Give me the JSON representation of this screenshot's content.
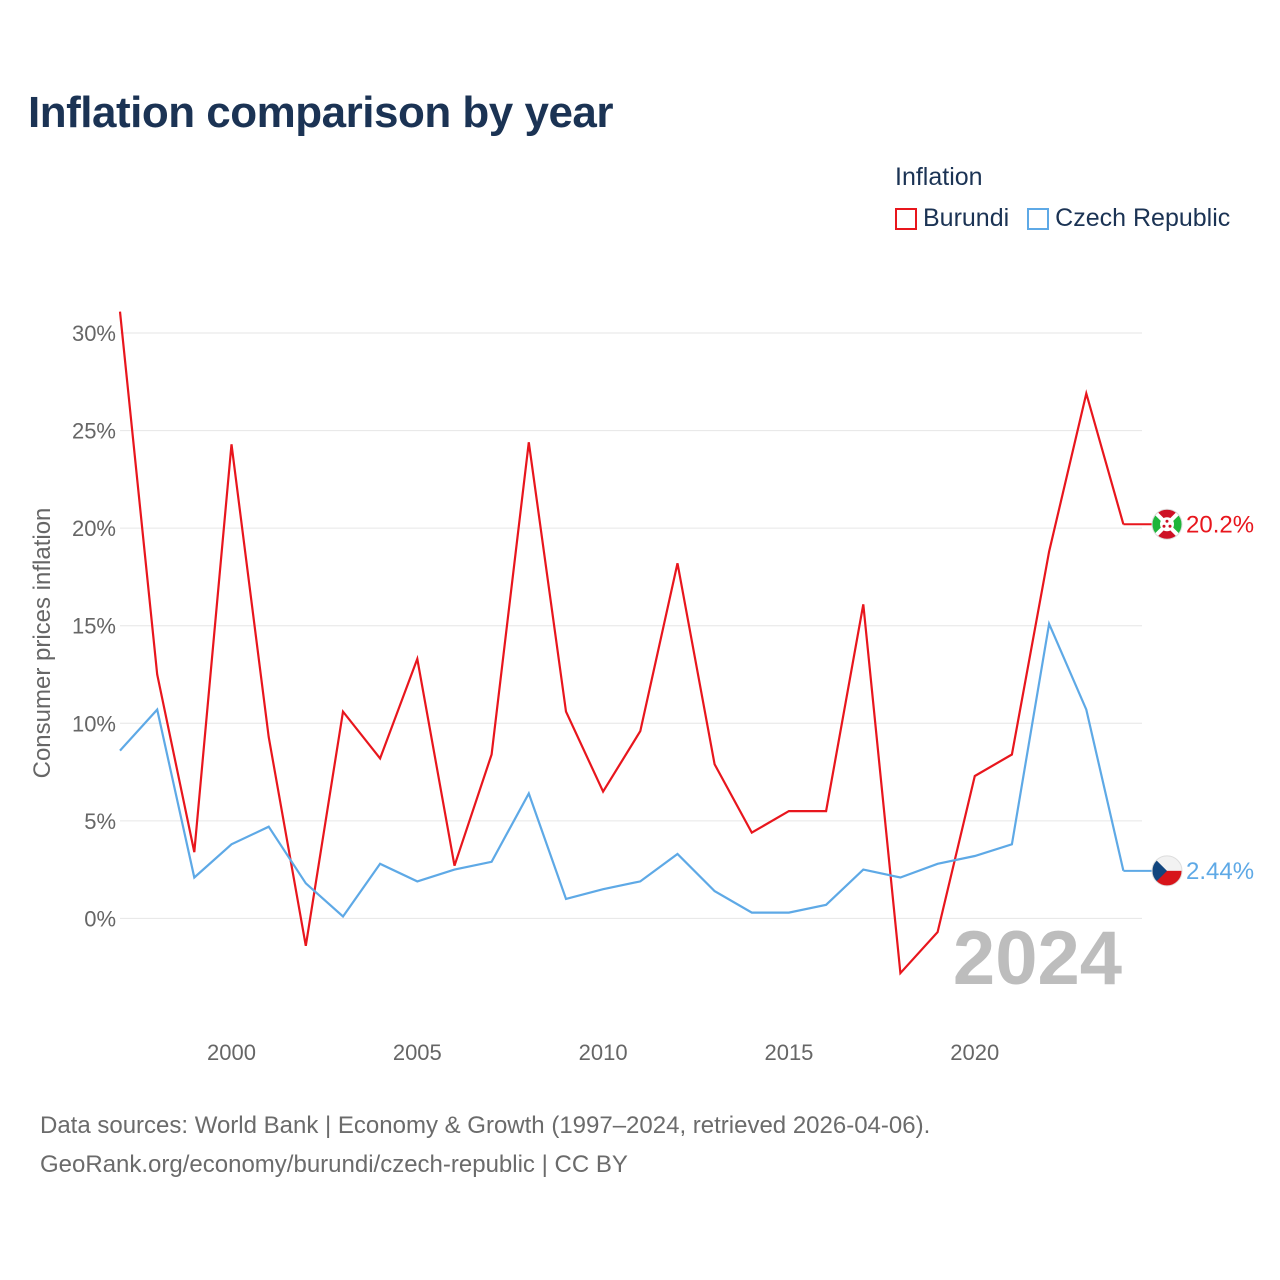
{
  "title": "Inflation comparison by year",
  "legend": {
    "title": "Inflation",
    "items": [
      {
        "label": "Burundi",
        "color": "#e8161d"
      },
      {
        "label": "Czech Republic",
        "color": "#5ea9e6"
      }
    ]
  },
  "footer": {
    "line1": "Data sources: World Bank | Economy & Growth (1997–2024, retrieved 2026-04-06).",
    "line2": "GeoRank.org/economy/burundi/czech-republic | CC BY"
  },
  "chart_data": {
    "type": "line",
    "title": "Inflation comparison by year",
    "ylabel": "Consumer prices inflation",
    "xlabel": "",
    "current_year": "2024",
    "x": [
      1997,
      1998,
      1999,
      2000,
      2001,
      2002,
      2003,
      2004,
      2005,
      2006,
      2007,
      2008,
      2009,
      2010,
      2011,
      2012,
      2013,
      2014,
      2015,
      2016,
      2017,
      2018,
      2019,
      2020,
      2021,
      2022,
      2023,
      2024
    ],
    "xlim": [
      1997,
      2024.5
    ],
    "ylim": [
      -5,
      32
    ],
    "x_ticks": [
      2000,
      2005,
      2010,
      2015,
      2020
    ],
    "y_ticks": [
      0,
      5,
      10,
      15,
      20,
      25,
      30
    ],
    "y_tick_labels": [
      "0%",
      "5%",
      "10%",
      "15%",
      "20%",
      "25%",
      "30%"
    ],
    "series": [
      {
        "name": "Burundi",
        "color": "#e8161d",
        "end_label": "20.2%",
        "flag": "burundi",
        "values": [
          31.1,
          12.5,
          3.4,
          24.3,
          9.3,
          -1.4,
          10.6,
          8.2,
          13.3,
          2.7,
          8.4,
          24.4,
          10.6,
          6.5,
          9.6,
          18.2,
          7.9,
          4.4,
          5.5,
          5.5,
          16.1,
          -2.8,
          -0.7,
          7.3,
          8.4,
          18.8,
          26.9,
          20.2
        ]
      },
      {
        "name": "Czech Republic",
        "color": "#5ea9e6",
        "end_label": "2.44%",
        "flag": "czech",
        "values": [
          8.6,
          10.7,
          2.1,
          3.8,
          4.7,
          1.8,
          0.1,
          2.8,
          1.9,
          2.5,
          2.9,
          6.4,
          1.0,
          1.5,
          1.9,
          3.3,
          1.4,
          0.3,
          0.3,
          0.7,
          2.5,
          2.1,
          2.8,
          3.2,
          3.8,
          15.1,
          10.7,
          2.44
        ]
      }
    ]
  }
}
